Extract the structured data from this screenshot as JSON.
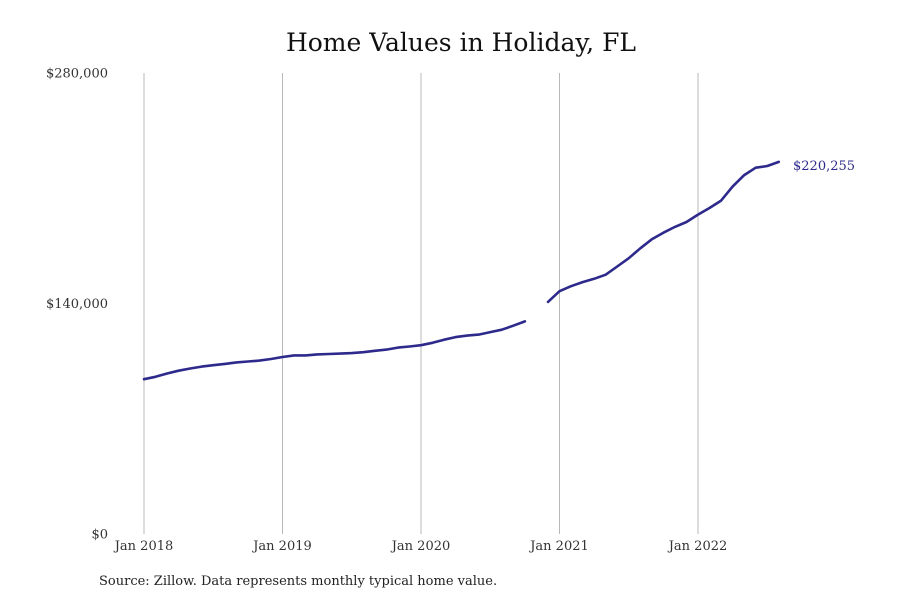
{
  "chart_data": {
    "type": "line",
    "title": "Home Values in Holiday, FL",
    "xlabel": "",
    "ylabel": "",
    "ylim": [
      0,
      280000
    ],
    "xlim": [
      "2018-01",
      "2022-12"
    ],
    "y_ticks": [
      {
        "value": 0,
        "label": "$0"
      },
      {
        "value": 140000,
        "label": "$140,000"
      },
      {
        "value": 280000,
        "label": "$280,000"
      }
    ],
    "x_ticks": [
      {
        "value": "2018-01",
        "label": "Jan 2018"
      },
      {
        "value": "2019-01",
        "label": "Jan 2019"
      },
      {
        "value": "2020-01",
        "label": "Jan 2020"
      },
      {
        "value": "2021-01",
        "label": "Jan 2021"
      },
      {
        "value": "2022-01",
        "label": "Jan 2022"
      }
    ],
    "grid": "vertical",
    "legend": "none",
    "series": [
      {
        "color": "#2e2a8c",
        "segments": [
          {
            "x": [
              "2018-01",
              "2018-02",
              "2018-03",
              "2018-04",
              "2018-05",
              "2018-06",
              "2018-07",
              "2018-08",
              "2018-09",
              "2018-10",
              "2018-11",
              "2018-12",
              "2019-01",
              "2019-02",
              "2019-03",
              "2019-04",
              "2019-05",
              "2019-06",
              "2019-07",
              "2019-08",
              "2019-09",
              "2019-10",
              "2019-11",
              "2019-12",
              "2020-01",
              "2020-02",
              "2020-03",
              "2020-04",
              "2020-05",
              "2020-06",
              "2020-07",
              "2020-08",
              "2020-09",
              "2020-10"
            ],
            "y": [
              94000,
              95500,
              97500,
              99200,
              100500,
              101700,
              102500,
              103300,
              104200,
              104800,
              105300,
              106300,
              107500,
              108500,
              108500,
              109100,
              109300,
              109600,
              109900,
              110400,
              111300,
              112000,
              113200,
              113900,
              114700,
              116100,
              118000,
              119600,
              120500,
              121100,
              122600,
              124100,
              126500,
              129100
            ]
          },
          {
            "x": [
              "2020-12",
              "2021-01",
              "2021-02",
              "2021-03",
              "2021-04",
              "2021-05",
              "2021-06",
              "2021-07",
              "2021-08",
              "2021-09",
              "2021-10",
              "2021-11",
              "2021-12",
              "2022-01",
              "2022-02",
              "2022-03",
              "2022-04",
              "2022-05",
              "2022-06",
              "2022-07",
              "2022-08"
            ],
            "y": [
              141000,
              147500,
              150500,
              153000,
              155000,
              157500,
              162500,
              167500,
              173500,
              179000,
              183000,
              186500,
              189500,
              194000,
              198000,
              202500,
              211000,
              218000,
              222500,
              223500,
              226000
            ]
          }
        ]
      }
    ],
    "end_label": "$220,255",
    "note": "Source: Zillow. Data represents monthly typical home value."
  }
}
